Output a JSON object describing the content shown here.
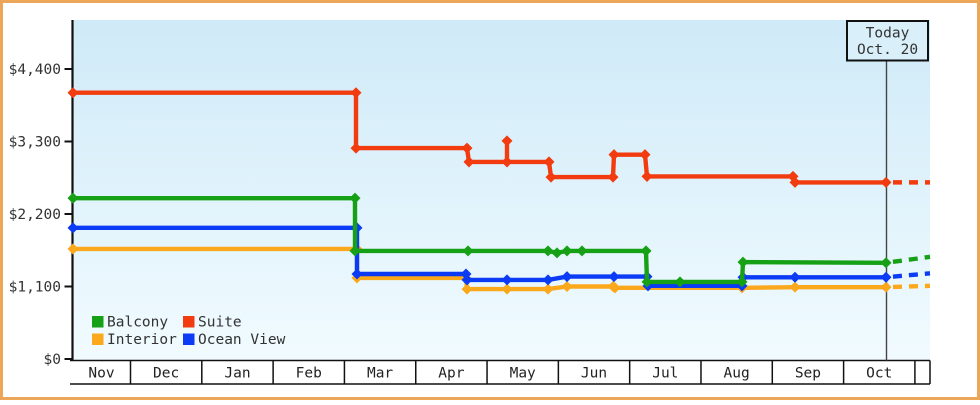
{
  "frame": {
    "border_color": "#eba757",
    "background": "#ffffff"
  },
  "chart_data": {
    "type": "line",
    "y_axis": {
      "ticks": [
        {
          "label": "$4,400",
          "value": 4400
        },
        {
          "label": "$3,300",
          "value": 3300
        },
        {
          "label": "$2,200",
          "value": 2200
        },
        {
          "label": "$1,100",
          "value": 1100
        },
        {
          "label": "$0",
          "value": 0
        }
      ],
      "ylim": [
        0,
        4840
      ]
    },
    "x_axis": {
      "months": [
        "Nov",
        "Dec",
        "Jan",
        "Feb",
        "Mar",
        "Apr",
        "May",
        "Jun",
        "Jul",
        "Aug",
        "Sep",
        "Oct"
      ]
    },
    "plot_background": {
      "top": "#cfeaf8",
      "bottom": "#f1fbff"
    },
    "today": {
      "label_line1": "Today",
      "label_line2": "Oct. 20",
      "x": 886,
      "box_fill": "#d9f0fa"
    },
    "legend": {
      "entries": [
        "Balcony",
        "Suite",
        "Interior",
        "Ocean View"
      ]
    },
    "series": [
      {
        "name": "Balcony",
        "color": "#16a016",
        "points": [
          [
            73,
            2440,
            1
          ],
          [
            355,
            2440,
            1
          ],
          [
            355,
            1640,
            1
          ],
          [
            468,
            1640,
            1
          ],
          [
            548,
            1640,
            1
          ],
          [
            557,
            1610,
            1
          ],
          [
            567,
            1640,
            1
          ],
          [
            582,
            1640,
            1
          ],
          [
            646,
            1640,
            1
          ],
          [
            647,
            1170,
            1
          ],
          [
            680,
            1170,
            1
          ],
          [
            742,
            1170,
            1
          ],
          [
            743,
            1470,
            1
          ],
          [
            886,
            1460,
            1
          ]
        ],
        "forecast_dash": [
          [
            886,
            1460
          ],
          [
            930,
            1550
          ]
        ]
      },
      {
        "name": "Suite",
        "color": "#f23c10",
        "points": [
          [
            73,
            4040,
            1
          ],
          [
            356,
            4040,
            1
          ],
          [
            356,
            3200,
            1
          ],
          [
            467,
            3200,
            1
          ],
          [
            469,
            2990,
            1
          ],
          [
            507,
            2990,
            1
          ],
          [
            507,
            3310,
            1
          ],
          [
            507,
            2990,
            0
          ],
          [
            549,
            2990,
            1
          ],
          [
            551,
            2760,
            1
          ],
          [
            613,
            2760,
            1
          ],
          [
            614,
            3100,
            1
          ],
          [
            645,
            3100,
            1
          ],
          [
            647,
            2770,
            1
          ],
          [
            793,
            2770,
            1
          ],
          [
            795,
            2680,
            1
          ],
          [
            886,
            2680,
            1
          ]
        ],
        "forecast_dash": [
          [
            886,
            2680
          ],
          [
            930,
            2680
          ]
        ]
      },
      {
        "name": "Interior",
        "color": "#fba81c",
        "points": [
          [
            73,
            1670,
            1
          ],
          [
            357,
            1670,
            1
          ],
          [
            357,
            1230,
            1
          ],
          [
            466,
            1230,
            1
          ],
          [
            467,
            1060,
            1
          ],
          [
            507,
            1060,
            1
          ],
          [
            548,
            1060,
            1
          ],
          [
            567,
            1100,
            1
          ],
          [
            613,
            1100,
            1
          ],
          [
            615,
            1080,
            1
          ],
          [
            742,
            1080,
            1
          ],
          [
            795,
            1090,
            1
          ],
          [
            886,
            1090,
            1
          ]
        ],
        "forecast_dash": [
          [
            886,
            1090
          ],
          [
            930,
            1110
          ]
        ]
      },
      {
        "name": "Ocean View",
        "color": "#0b3bf5",
        "points": [
          [
            73,
            1990,
            1
          ],
          [
            357,
            1990,
            1
          ],
          [
            357,
            1290,
            1
          ],
          [
            466,
            1290,
            1
          ],
          [
            467,
            1200,
            1
          ],
          [
            507,
            1200,
            1
          ],
          [
            548,
            1200,
            1
          ],
          [
            567,
            1250,
            1
          ],
          [
            614,
            1250,
            1
          ],
          [
            647,
            1250,
            1
          ],
          [
            648,
            1110,
            1
          ],
          [
            742,
            1110,
            1
          ],
          [
            743,
            1240,
            1
          ],
          [
            795,
            1240,
            1
          ],
          [
            886,
            1240,
            1
          ]
        ],
        "forecast_dash": [
          [
            886,
            1240
          ],
          [
            930,
            1300
          ]
        ]
      }
    ]
  }
}
